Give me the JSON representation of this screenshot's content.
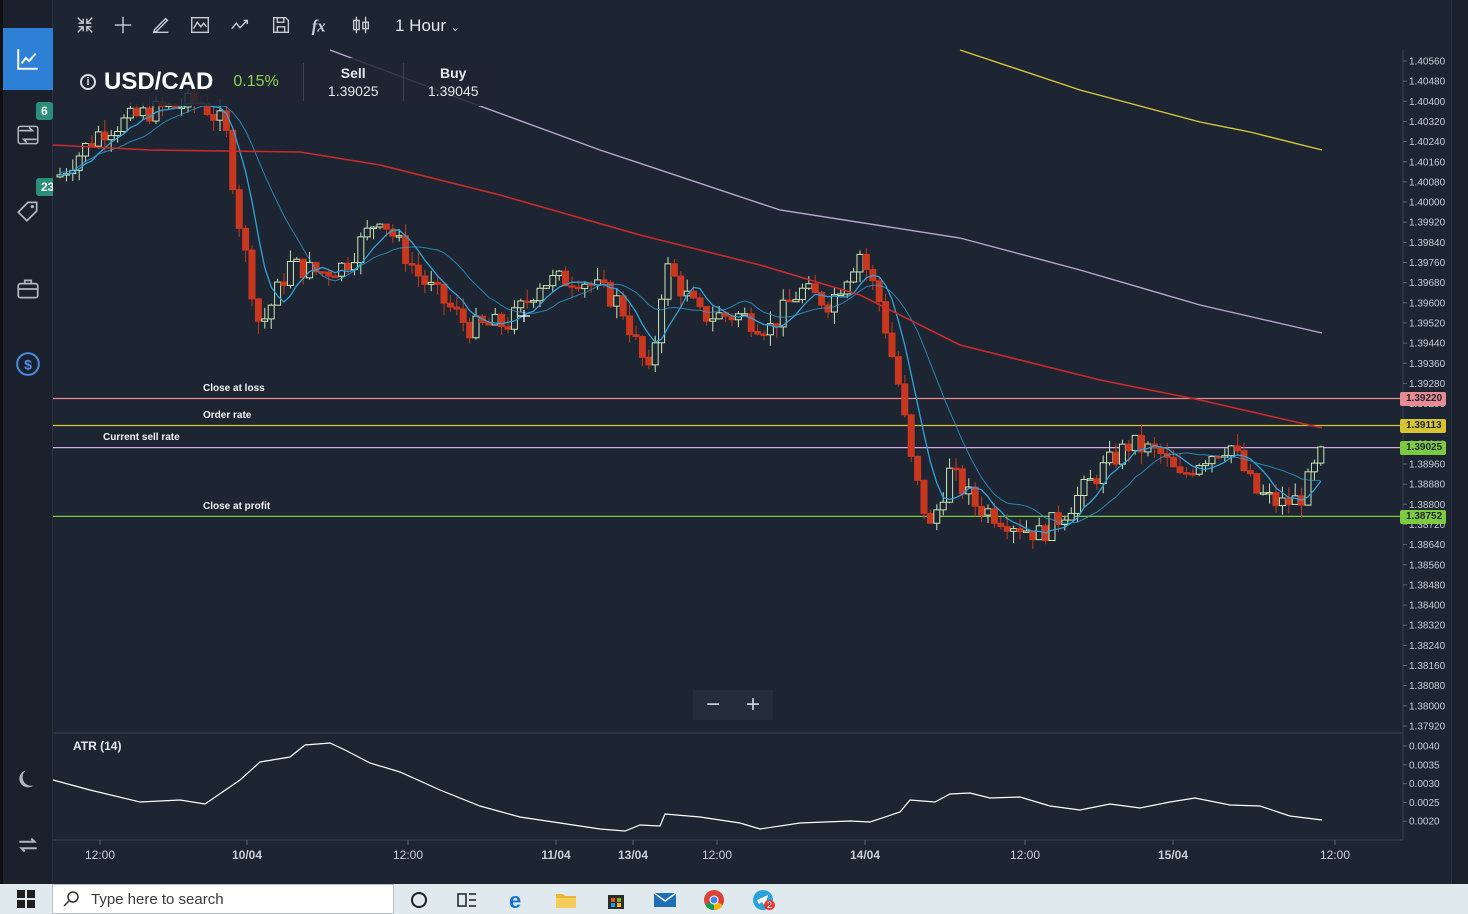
{
  "toolbar": {
    "interval_label": "1 Hour",
    "tools": [
      "collapse-icon",
      "crosshair-icon",
      "pencil-icon",
      "pattern-icon",
      "trendline-icon",
      "save-icon",
      "function-icon",
      "compare-icon"
    ]
  },
  "sidebar": {
    "items": [
      {
        "icon": "line-chart-icon",
        "active": true
      },
      {
        "icon": "trades-icon",
        "badge": "6"
      },
      {
        "icon": "tag-icon",
        "badge": "23"
      },
      {
        "icon": "briefcase-icon"
      },
      {
        "icon": "dollar-icon"
      }
    ],
    "bottom": [
      "moon-icon",
      "swap-icon"
    ]
  },
  "quote": {
    "pair": "USD/CAD",
    "change": "0.15%",
    "sell_label": "Sell",
    "sell_value": "1.39025",
    "buy_label": "Buy",
    "buy_value": "1.39045"
  },
  "levels": [
    {
      "label": "Close at loss",
      "price": 1.3922,
      "badge": "1.39220",
      "color": "#e88a92"
    },
    {
      "label": "Order rate",
      "price": 1.39113,
      "badge": "1.39113",
      "color": "#d6c431"
    },
    {
      "label": "Current sell rate",
      "price": 1.39025,
      "badge": "1.39025",
      "color": "#d6a6e6"
    },
    {
      "label": "Close at profit",
      "price": 1.38752,
      "badge": "1.38752",
      "color": "#7ccb3f"
    }
  ],
  "price_axis": [
    "1.40560",
    "1.40480",
    "1.40400",
    "1.40320",
    "1.40240",
    "1.40160",
    "1.40080",
    "1.40000",
    "1.39920",
    "1.39840",
    "1.39760",
    "1.39680",
    "1.39600",
    "1.39520",
    "1.39440",
    "1.39360",
    "1.39280",
    "1.39200",
    "1.39120",
    "1.39040",
    "1.38960",
    "1.38880",
    "1.38800",
    "1.38720",
    "1.38640",
    "1.38560",
    "1.38480",
    "1.38400",
    "1.38320",
    "1.38240",
    "1.38160",
    "1.38080",
    "1.38000",
    "1.37920"
  ],
  "time_axis": [
    "12:00",
    "10/04",
    "12:00",
    "11/04",
    "13/04",
    "12:00",
    "14/04",
    "12:00",
    "15/04",
    "12:00"
  ],
  "atr": {
    "label": "ATR (14)",
    "axis": [
      "0.0040",
      "0.0035",
      "0.0030",
      "0.0025",
      "0.0020"
    ]
  },
  "zoom": {
    "minus": "−",
    "plus": "+"
  },
  "taskbar": {
    "search_placeholder": "Type here to search",
    "apps": [
      "cortana-icon",
      "task-view-icon",
      "edge-icon",
      "file-explorer-icon",
      "store-icon",
      "mail-icon",
      "chrome-icon",
      "telegram-icon"
    ],
    "telegram_badge": "2"
  },
  "colors": {
    "bull": "#c8e6b4",
    "bear": "#c8371e",
    "ma_fast": "#2fa3d9",
    "ma_mid": "#c82a2a",
    "ma_slow": "#b9a6cf",
    "ma_long": "#d9c73a",
    "accent": "#2e7fd6"
  }
}
